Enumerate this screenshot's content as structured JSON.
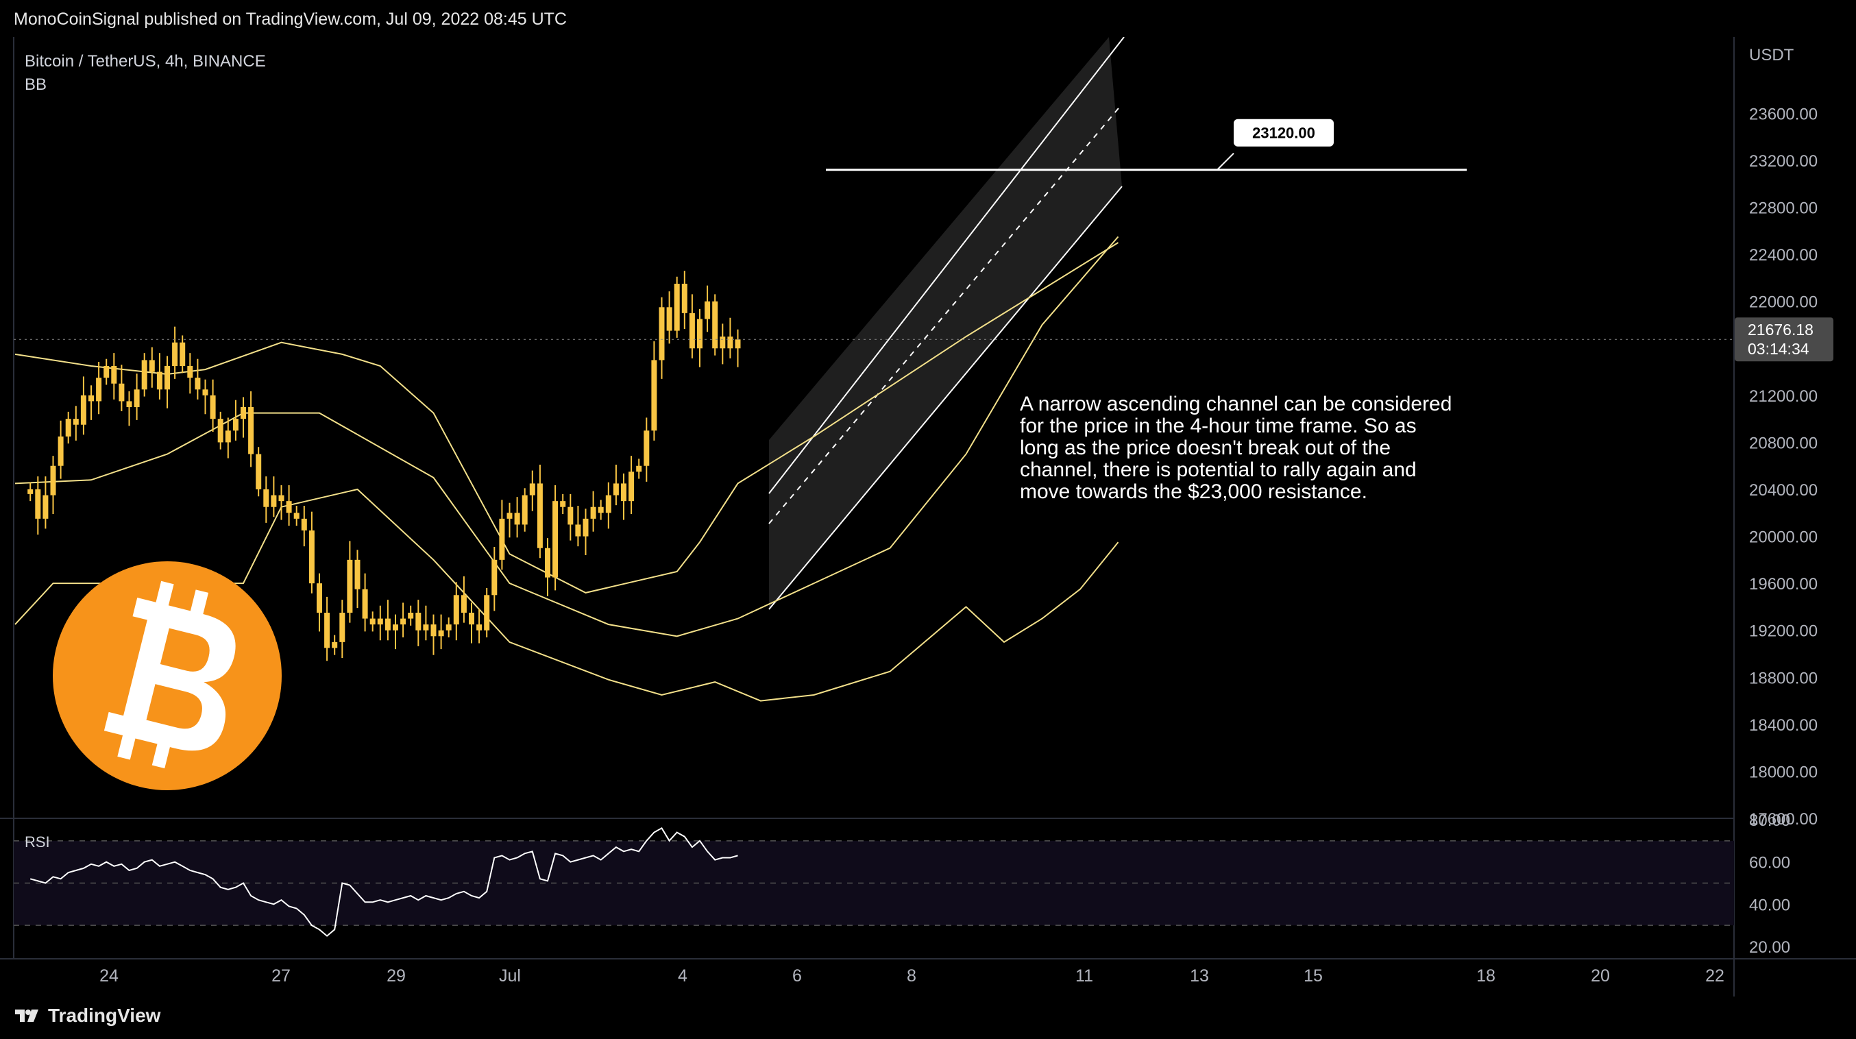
{
  "header": {
    "published": "MonoCoinSignal published on TradingView.com, Jul 09, 2022 08:45 UTC"
  },
  "legend": {
    "symbol": "Bitcoin / TetherUS, 4h, BINANCE",
    "indicator": "BB"
  },
  "rsi_label": "RSI",
  "annotation": "A narrow ascending channel can be considered for the price in the 4-hour time frame. So as long as the price doesn't break out of the channel, there is potential to rally again and move towards the $23,000 resistance.",
  "footer": {
    "brand": "TradingView"
  },
  "colors": {
    "candle": "#f9c543",
    "bb": "#f3e08a",
    "channel": "#ffffff",
    "bitcoin": "#f7931a",
    "rsi_bg": "#0f0b1a"
  },
  "icon": "bitcoin-logo",
  "chart_data": {
    "type": "candlestick",
    "quote_currency": "USDT",
    "y_ticks": [
      "23600.00",
      "23200.00",
      "22800.00",
      "22400.00",
      "22000.00",
      "21600.00",
      "21200.00",
      "20800.00",
      "20400.00",
      "20000.00",
      "19600.00",
      "19200.00",
      "18800.00",
      "18400.00",
      "18000.00",
      "17600.00"
    ],
    "ylim": [
      17600,
      23900
    ],
    "x_ticks": [
      "24",
      "27",
      "29",
      "Jul",
      "4",
      "6",
      "8",
      "11",
      "13",
      "15",
      "18",
      "20",
      "22"
    ],
    "last_price": {
      "value": "21676.18",
      "countdown": "03:14:34"
    },
    "resistance": {
      "value": 23120,
      "label": "23120.00"
    },
    "close_series": [
      20400,
      20150,
      20350,
      20600,
      20850,
      21000,
      20950,
      21200,
      21150,
      21350,
      21450,
      21300,
      21150,
      21100,
      21250,
      21500,
      21400,
      21250,
      21450,
      21650,
      21450,
      21350,
      21250,
      21200,
      21000,
      20800,
      20900,
      21000,
      21100,
      20700,
      20400,
      20250,
      20350,
      20300,
      20200,
      20150,
      20050,
      19600,
      19350,
      19050,
      19100,
      19350,
      19800,
      19550,
      19300,
      19250,
      19300,
      19200,
      19250,
      19300,
      19350,
      19200,
      19250,
      19150,
      19200,
      19250,
      19500,
      19350,
      19250,
      19200,
      19500,
      19800,
      20150,
      20200,
      20100,
      20350,
      20450,
      19900,
      19650,
      20300,
      20250,
      20100,
      20000,
      20150,
      20250,
      20200,
      20350,
      20450,
      20300,
      20550,
      20600,
      20900,
      21500,
      21950,
      21750,
      22150,
      21900,
      21600,
      21850,
      22000,
      21600,
      21700,
      21600,
      21676
    ],
    "bb_upper": [
      [
        0,
        21550
      ],
      [
        10,
        21450
      ],
      [
        20,
        21380
      ],
      [
        25,
        21420
      ],
      [
        35,
        21650
      ],
      [
        43,
        21550
      ],
      [
        48,
        21450
      ],
      [
        55,
        21050
      ],
      [
        65,
        19850
      ],
      [
        75,
        19520
      ],
      [
        87,
        19700
      ],
      [
        90,
        19950
      ],
      [
        95,
        20450
      ],
      [
        105,
        20850
      ],
      [
        125,
        21700
      ],
      [
        145,
        22500
      ]
    ],
    "bb_mid": [
      [
        0,
        20450
      ],
      [
        10,
        20480
      ],
      [
        20,
        20700
      ],
      [
        30,
        21050
      ],
      [
        40,
        21050
      ],
      [
        55,
        20500
      ],
      [
        65,
        19600
      ],
      [
        78,
        19250
      ],
      [
        87,
        19150
      ],
      [
        95,
        19300
      ],
      [
        105,
        19600
      ],
      [
        115,
        19900
      ],
      [
        125,
        20700
      ],
      [
        135,
        21800
      ],
      [
        145,
        22550
      ]
    ],
    "bb_lower": [
      [
        0,
        19250
      ],
      [
        5,
        19600
      ],
      [
        30,
        19600
      ],
      [
        35,
        20250
      ],
      [
        45,
        20400
      ],
      [
        55,
        19800
      ],
      [
        65,
        19100
      ],
      [
        78,
        18780
      ],
      [
        85,
        18650
      ],
      [
        92,
        18760
      ],
      [
        98,
        18600
      ],
      [
        105,
        18650
      ],
      [
        115,
        18850
      ],
      [
        125,
        19400
      ],
      [
        130,
        19100
      ],
      [
        135,
        19300
      ],
      [
        140,
        19550
      ],
      [
        145,
        19950
      ]
    ],
    "rsi": {
      "levels": [
        "80.00",
        "60.00",
        "40.00",
        "20.00"
      ],
      "upper_band": 70,
      "lower_band": 30,
      "values": [
        52,
        51,
        50,
        53,
        52,
        55,
        56,
        57,
        59,
        58,
        60,
        58,
        59,
        56,
        57,
        60,
        61,
        58,
        59,
        60,
        58,
        56,
        55,
        54,
        52,
        48,
        47,
        48,
        50,
        44,
        42,
        41,
        40,
        42,
        39,
        38,
        35,
        30,
        28,
        25,
        28,
        50,
        49,
        45,
        41,
        41,
        42,
        41,
        42,
        43,
        44,
        42,
        44,
        43,
        42,
        43,
        45,
        46,
        44,
        43,
        46,
        62,
        63,
        61,
        62,
        64,
        65,
        52,
        51,
        64,
        63,
        60,
        61,
        62,
        63,
        61,
        64,
        67,
        65,
        66,
        65,
        70,
        74,
        76,
        70,
        74,
        72,
        67,
        70,
        65,
        61,
        62,
        62,
        63
      ]
    }
  }
}
